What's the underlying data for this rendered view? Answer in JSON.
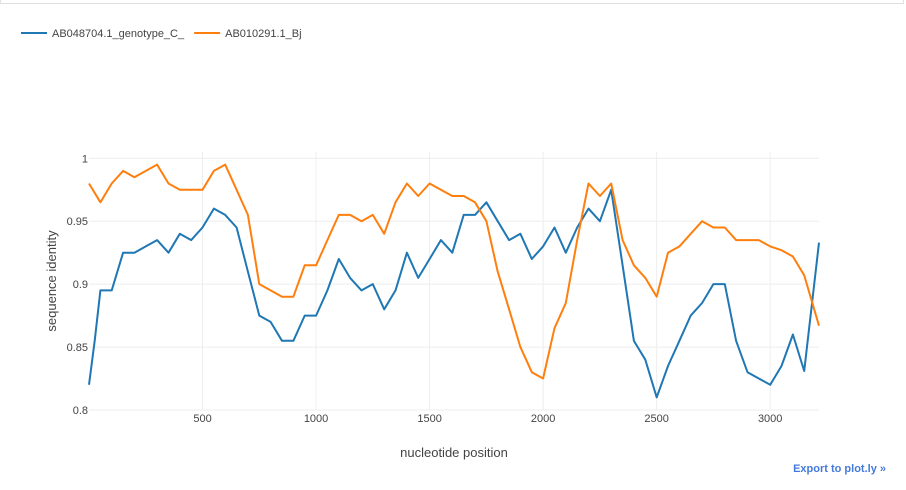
{
  "export_label": "Export to plot.ly »",
  "chart_data": {
    "type": "line",
    "xlabel": "nucleotide position",
    "ylabel": "sequence identity",
    "xlim": [
      0,
      3215
    ],
    "ylim": [
      0.8,
      1.005
    ],
    "xticks": [
      500,
      1000,
      1500,
      2000,
      2500,
      3000
    ],
    "yticks": [
      0.8,
      0.85,
      0.9,
      0.95,
      1
    ],
    "ytick_labels": [
      "0.8",
      "0.85",
      "0.9",
      "0.95",
      "1"
    ],
    "grid": true,
    "legend_position": "top-left",
    "series": [
      {
        "name": "AB048704.1_genotype_C_",
        "color": "#1f77b4",
        "x": [
          0,
          25,
          50,
          100,
          150,
          200,
          250,
          300,
          350,
          400,
          450,
          500,
          550,
          600,
          650,
          700,
          750,
          800,
          850,
          900,
          950,
          1000,
          1050,
          1100,
          1150,
          1200,
          1250,
          1300,
          1350,
          1400,
          1450,
          1500,
          1550,
          1600,
          1650,
          1700,
          1750,
          1800,
          1850,
          1900,
          1950,
          2000,
          2050,
          2100,
          2150,
          2200,
          2250,
          2300,
          2350,
          2400,
          2450,
          2500,
          2550,
          2600,
          2650,
          2700,
          2750,
          2800,
          2850,
          2900,
          2950,
          3000,
          3050,
          3100,
          3150,
          3215
        ],
        "y": [
          0.82,
          0.855,
          0.895,
          0.895,
          0.925,
          0.925,
          0.93,
          0.935,
          0.925,
          0.94,
          0.935,
          0.945,
          0.96,
          0.955,
          0.945,
          0.91,
          0.875,
          0.87,
          0.855,
          0.855,
          0.875,
          0.875,
          0.895,
          0.92,
          0.905,
          0.895,
          0.9,
          0.88,
          0.895,
          0.925,
          0.905,
          0.92,
          0.935,
          0.925,
          0.955,
          0.955,
          0.965,
          0.95,
          0.935,
          0.94,
          0.92,
          0.93,
          0.945,
          0.925,
          0.945,
          0.96,
          0.95,
          0.975,
          0.915,
          0.855,
          0.84,
          0.81,
          0.835,
          0.855,
          0.875,
          0.885,
          0.9,
          0.9,
          0.855,
          0.83,
          0.825,
          0.82,
          0.835,
          0.86,
          0.831,
          0.933
        ]
      },
      {
        "name": "AB010291.1_Bj",
        "color": "#ff7f0e",
        "x": [
          0,
          50,
          100,
          150,
          200,
          250,
          300,
          350,
          400,
          450,
          500,
          550,
          600,
          650,
          700,
          750,
          800,
          850,
          900,
          950,
          1000,
          1050,
          1100,
          1150,
          1200,
          1250,
          1300,
          1350,
          1400,
          1450,
          1500,
          1550,
          1600,
          1650,
          1700,
          1750,
          1800,
          1850,
          1900,
          1950,
          2000,
          2050,
          2100,
          2150,
          2200,
          2250,
          2300,
          2350,
          2400,
          2450,
          2500,
          2550,
          2600,
          2650,
          2700,
          2750,
          2800,
          2850,
          2900,
          2950,
          3000,
          3050,
          3100,
          3150,
          3215
        ],
        "y": [
          0.98,
          0.965,
          0.98,
          0.99,
          0.985,
          0.99,
          0.995,
          0.98,
          0.975,
          0.975,
          0.975,
          0.99,
          0.995,
          0.975,
          0.955,
          0.9,
          0.895,
          0.89,
          0.89,
          0.915,
          0.915,
          0.935,
          0.955,
          0.955,
          0.95,
          0.955,
          0.94,
          0.965,
          0.98,
          0.97,
          0.98,
          0.975,
          0.97,
          0.97,
          0.965,
          0.95,
          0.91,
          0.88,
          0.85,
          0.83,
          0.825,
          0.865,
          0.885,
          0.935,
          0.98,
          0.97,
          0.98,
          0.935,
          0.915,
          0.905,
          0.89,
          0.925,
          0.93,
          0.94,
          0.95,
          0.945,
          0.945,
          0.935,
          0.935,
          0.935,
          0.93,
          0.927,
          0.922,
          0.907,
          0.867
        ]
      }
    ]
  }
}
